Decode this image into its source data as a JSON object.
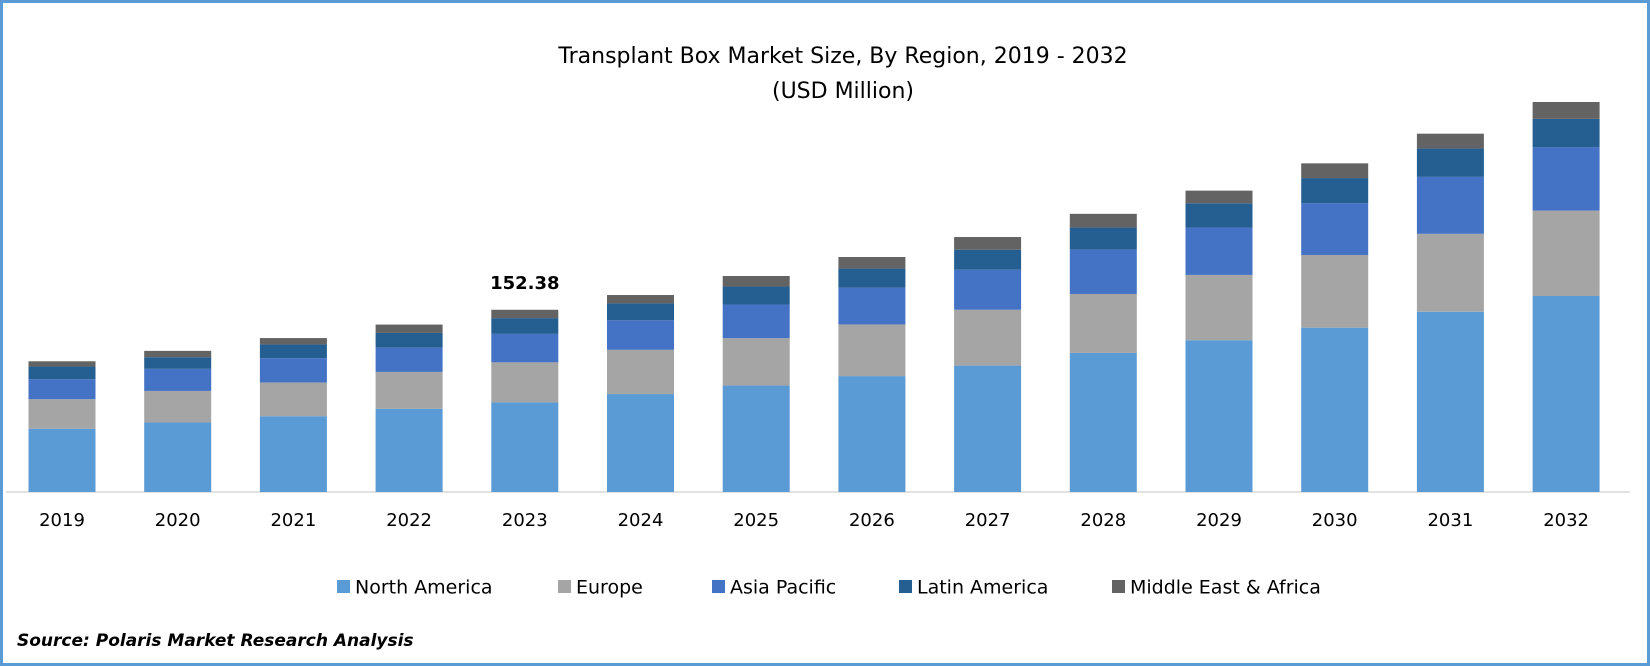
{
  "chart_data": {
    "type": "stacked_bar",
    "title": "Transplant Box Market Size, By Region, 2019 - 2032",
    "subtitle": "(USD Million)",
    "categories": [
      "2019",
      "2020",
      "2021",
      "2022",
      "2023",
      "2024",
      "2025",
      "2026",
      "2027",
      "2028",
      "2029",
      "2030",
      "2031",
      "2032"
    ],
    "series": [
      {
        "name": "North America",
        "color": "#5b9bd5",
        "values": [
          52.9,
          58.1,
          63.4,
          69.6,
          74.9,
          81.9,
          89.0,
          96.9,
          105.7,
          116.3,
          126.9,
          137.4,
          150.7,
          163.9
        ]
      },
      {
        "name": "Europe",
        "color": "#a5a5a5",
        "values": [
          24.7,
          26.4,
          28.2,
          30.8,
          33.5,
          37.0,
          39.6,
          43.2,
          46.7,
          49.3,
          54.6,
          60.8,
          65.2,
          71.4
        ]
      },
      {
        "name": "Asia Pacific",
        "color": "#4472c4",
        "values": [
          16.7,
          18.5,
          20.3,
          20.3,
          23.8,
          24.7,
          28.2,
          30.8,
          33.5,
          37.0,
          39.6,
          43.2,
          47.6,
          52.9
        ]
      },
      {
        "name": "Latin America",
        "color": "#255e91",
        "values": [
          10.6,
          9.7,
          11.5,
          12.3,
          13.2,
          14.1,
          15.0,
          15.9,
          16.7,
          18.5,
          20.3,
          21.1,
          23.8,
          23.8
        ]
      },
      {
        "name": "Middle East & Africa",
        "color": "#636363",
        "values": [
          4.4,
          5.3,
          5.3,
          7.0,
          6.98,
          7.0,
          8.8,
          9.7,
          10.6,
          11.5,
          10.6,
          12.3,
          12.3,
          14.1
        ]
      }
    ],
    "annotations": [
      {
        "x": "2023",
        "text": "152.38"
      }
    ],
    "legend": "bottom",
    "source": "Source: Polaris Market Research Analysis"
  }
}
